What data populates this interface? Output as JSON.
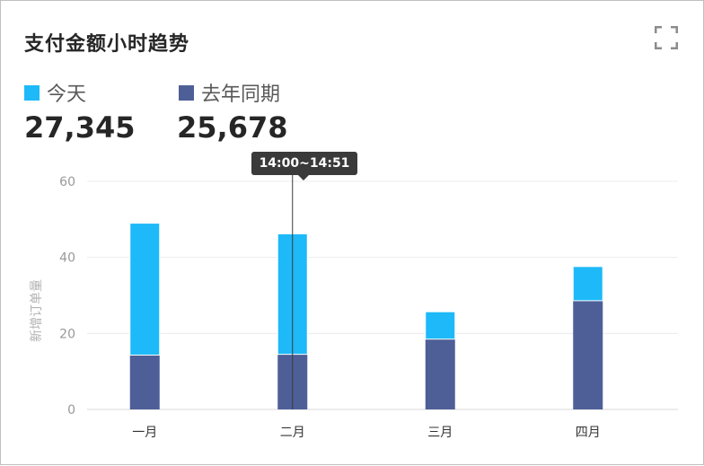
{
  "header": {
    "title": "支付金额小时趋势",
    "fullscreen_icon": "fullscreen-icon"
  },
  "summary": [
    {
      "label": "今天",
      "value": "27,345",
      "color": "#1EB9F8"
    },
    {
      "label": "去年同期",
      "value": "25,678",
      "color": "#4E5F98"
    }
  ],
  "tooltip": {
    "text": "14:00~14:51"
  },
  "chart_data": {
    "type": "bar",
    "stacked": true,
    "categories": [
      "一月",
      "二月",
      "三月",
      "四月"
    ],
    "series": [
      {
        "name": "去年同期",
        "color": "#4E5F98",
        "values": [
          14.3,
          14.5,
          18.5,
          28.6
        ]
      },
      {
        "name": "今天",
        "color": "#1EB9F8",
        "values": [
          34.7,
          31.7,
          7.2,
          9.0
        ]
      }
    ],
    "yticks": [
      0,
      20,
      40,
      60
    ],
    "ylim": [
      0,
      60
    ],
    "ylabel": "新增订单量",
    "xlabel": "",
    "grid": true,
    "highlight_category": "二月"
  }
}
